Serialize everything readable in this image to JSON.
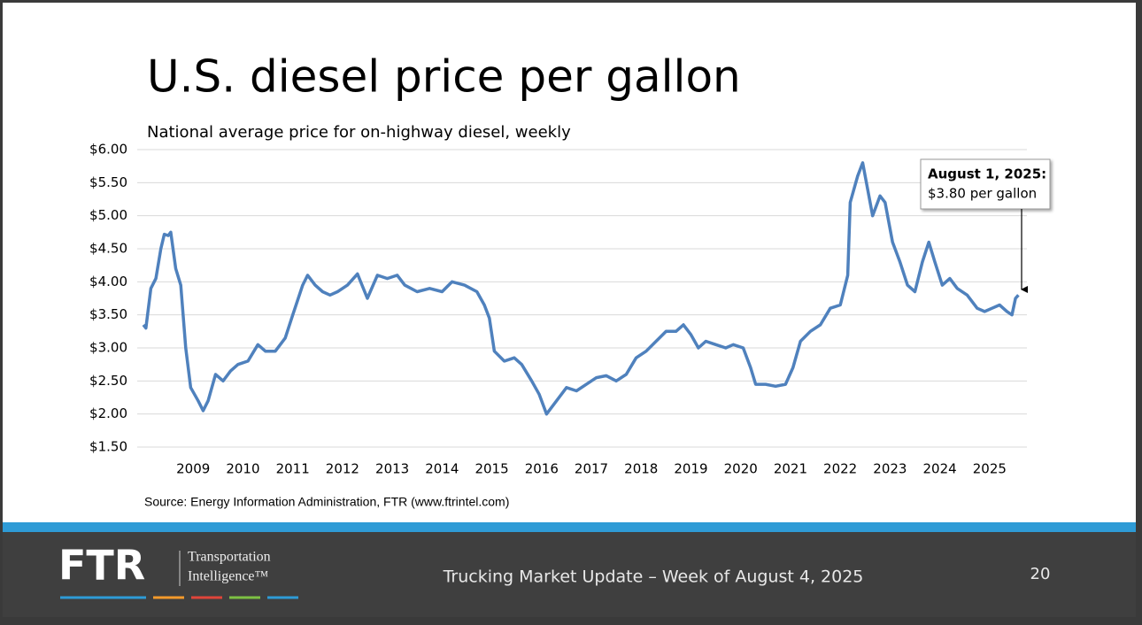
{
  "slide": {
    "title": "U.S. diesel price per gallon",
    "source": "Source: Energy Information Administration, FTR (www.ftrintel.com)",
    "footer": "Trucking Market Update – Week of August 4, 2025",
    "page_number": "20",
    "logo": {
      "name": "FTR",
      "line1": "Transportation",
      "line2": "Intelligence™"
    }
  },
  "chart_data": {
    "type": "line",
    "subtitle": "National average price for on-highway diesel, weekly",
    "color": "#4f81bd",
    "grid": true,
    "annotation": {
      "title": "August 1, 2025:",
      "text": "$3.80 per gallon"
    },
    "xlim": [
      2008,
      2025.75
    ],
    "xticks": [
      2009,
      2010,
      2011,
      2012,
      2013,
      2014,
      2015,
      2016,
      2017,
      2018,
      2019,
      2020,
      2021,
      2022,
      2023,
      2024,
      2025
    ],
    "ylim": [
      1.5,
      6
    ],
    "yticks": [
      {
        "value": 1.5,
        "label": "$1.50"
      },
      {
        "value": 2,
        "label": "$2.00"
      },
      {
        "value": 2.5,
        "label": "$2.50"
      },
      {
        "value": 3,
        "label": "$3.00"
      },
      {
        "value": 3.5,
        "label": "$3.50"
      },
      {
        "value": 4,
        "label": "$4.00"
      },
      {
        "value": 4.5,
        "label": "$4.50"
      },
      {
        "value": 5,
        "label": "$5.00"
      },
      {
        "value": 5.5,
        "label": "$5.50"
      },
      {
        "value": 6,
        "label": "$6.00"
      }
    ],
    "x": [
      2008.0,
      2008.05,
      2008.15,
      2008.25,
      2008.35,
      2008.42,
      2008.5,
      2008.55,
      2008.65,
      2008.75,
      2008.85,
      2008.95,
      2009.1,
      2009.2,
      2009.3,
      2009.45,
      2009.6,
      2009.75,
      2009.9,
      2010.1,
      2010.3,
      2010.45,
      2010.65,
      2010.85,
      2011.0,
      2011.2,
      2011.3,
      2011.45,
      2011.6,
      2011.75,
      2011.9,
      2012.1,
      2012.3,
      2012.5,
      2012.7,
      2012.9,
      2013.1,
      2013.25,
      2013.5,
      2013.75,
      2014.0,
      2014.2,
      2014.45,
      2014.7,
      2014.85,
      2014.95,
      2015.05,
      2015.25,
      2015.45,
      2015.6,
      2015.8,
      2015.95,
      2016.1,
      2016.3,
      2016.5,
      2016.7,
      2016.9,
      2017.1,
      2017.3,
      2017.5,
      2017.7,
      2017.9,
      2018.1,
      2018.3,
      2018.5,
      2018.7,
      2018.85,
      2019.0,
      2019.15,
      2019.3,
      2019.5,
      2019.7,
      2019.85,
      2020.05,
      2020.2,
      2020.3,
      2020.5,
      2020.7,
      2020.9,
      2021.05,
      2021.2,
      2021.4,
      2021.6,
      2021.8,
      2022.0,
      2022.15,
      2022.2,
      2022.35,
      2022.45,
      2022.55,
      2022.65,
      2022.8,
      2022.9,
      2023.05,
      2023.2,
      2023.35,
      2023.5,
      2023.65,
      2023.78,
      2023.9,
      2024.05,
      2024.2,
      2024.35,
      2024.55,
      2024.75,
      2024.9,
      2025.05,
      2025.2,
      2025.35,
      2025.45,
      2025.52,
      2025.58
    ],
    "values": [
      3.35,
      3.3,
      3.9,
      4.05,
      4.5,
      4.72,
      4.7,
      4.75,
      4.2,
      3.95,
      3.0,
      2.4,
      2.2,
      2.05,
      2.2,
      2.6,
      2.5,
      2.65,
      2.75,
      2.8,
      3.05,
      2.95,
      2.95,
      3.15,
      3.5,
      3.95,
      4.1,
      3.95,
      3.85,
      3.8,
      3.85,
      3.95,
      4.12,
      3.75,
      4.1,
      4.05,
      4.1,
      3.95,
      3.85,
      3.9,
      3.85,
      4.0,
      3.95,
      3.85,
      3.65,
      3.45,
      2.95,
      2.8,
      2.85,
      2.75,
      2.5,
      2.3,
      2.0,
      2.2,
      2.4,
      2.35,
      2.45,
      2.55,
      2.58,
      2.5,
      2.6,
      2.85,
      2.95,
      3.1,
      3.25,
      3.25,
      3.35,
      3.2,
      3.0,
      3.1,
      3.05,
      3.0,
      3.05,
      3.0,
      2.7,
      2.45,
      2.45,
      2.42,
      2.45,
      2.7,
      3.1,
      3.25,
      3.35,
      3.6,
      3.65,
      4.1,
      5.2,
      5.6,
      5.8,
      5.4,
      5.0,
      5.3,
      5.2,
      4.6,
      4.3,
      3.95,
      3.85,
      4.3,
      4.6,
      4.3,
      3.95,
      4.05,
      3.9,
      3.8,
      3.6,
      3.55,
      3.6,
      3.65,
      3.55,
      3.5,
      3.75,
      3.8
    ]
  }
}
